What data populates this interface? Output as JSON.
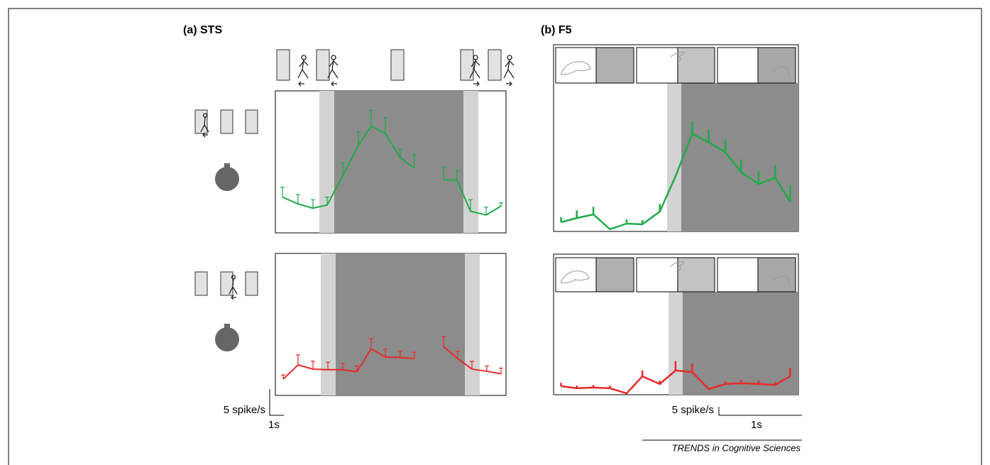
{
  "chart_data": [
    {
      "type": "line",
      "title": "(a) STS",
      "xlim": [
        0,
        16.25
      ],
      "ylim": [
        0,
        27
      ],
      "x": [
        0.5,
        1.6,
        2.65,
        3.65,
        4.75,
        5.85,
        6.75,
        7.75,
        8.8,
        9.8,
        10.8,
        11.85,
        12.8,
        13.75,
        14.85,
        15.9
      ],
      "series": [
        {
          "color": "#1faa4a",
          "values": [
            6.8,
            5.5,
            4.7,
            5.3,
            10.9,
            16.6,
            20.3,
            18.9,
            14.3,
            12.3,
            null,
            10.1,
            10.0,
            4.1,
            3.4,
            5.1
          ],
          "errors": [
            1.9,
            1.8,
            1.6,
            1.5,
            2.4,
            2.6,
            3.0,
            3.0,
            1.6,
            2.6,
            null,
            2.4,
            1.9,
            2.2,
            1.5,
            0.6
          ]
        }
      ]
    },
    {
      "type": "line",
      "xlim": [
        0,
        16.25
      ],
      "ylim": [
        0,
        27
      ],
      "x": [
        0.55,
        1.6,
        2.65,
        3.7,
        4.75,
        5.75,
        6.75,
        7.75,
        8.8,
        9.8,
        10.8,
        11.85,
        12.85,
        13.85,
        14.9,
        15.9
      ],
      "series": [
        {
          "color": "#e62a2a",
          "values": [
            3.1,
            5.8,
            5.0,
            4.9,
            4.9,
            4.5,
            8.9,
            7.3,
            7.2,
            7.0,
            null,
            9.3,
            7.0,
            5.0,
            4.6,
            4.1
          ],
          "errors": [
            0.8,
            1.9,
            1.5,
            1.4,
            1.2,
            1.1,
            1.9,
            1.5,
            1.2,
            1.2,
            null,
            1.9,
            1.4,
            1.5,
            1.0,
            1.1
          ]
        }
      ]
    },
    {
      "type": "line",
      "title": "(b) F5",
      "xlim": [
        0,
        2.95
      ],
      "ylim": [
        0,
        110
      ],
      "x": [
        0.09,
        0.28,
        0.48,
        0.68,
        0.88,
        1.07,
        1.28,
        1.47,
        1.67,
        1.87,
        2.07,
        2.26,
        2.47,
        2.67,
        2.85
      ],
      "series": [
        {
          "color": "#1faa4a",
          "values": [
            5.4,
            7.9,
            10,
            1.3,
            4.6,
            4.2,
            11.7,
            32.5,
            57.5,
            52.5,
            46.7,
            35,
            27.9,
            31.7,
            17.5
          ],
          "errors": [
            3,
            4.5,
            4.5,
            0,
            2.5,
            2.5,
            4.5,
            0,
            7.5,
            7.5,
            7.5,
            7.5,
            7.5,
            7.5,
            10
          ]
        }
      ]
    },
    {
      "type": "line",
      "xlim": [
        0,
        2.95
      ],
      "ylim": [
        0,
        82.5
      ],
      "x": [
        0.09,
        0.28,
        0.48,
        0.68,
        0.88,
        1.07,
        1.28,
        1.47,
        1.67,
        1.87,
        2.07,
        2.26,
        2.47,
        2.67,
        2.85
      ],
      "series": [
        {
          "color": "#e62a2a",
          "values": [
            5.0,
            3.8,
            4.2,
            3.8,
            0.8,
            10.8,
            6.3,
            14.2,
            13.3,
            3.3,
            6.3,
            6.7,
            6.3,
            5.8,
            10.8
          ],
          "errors": [
            2,
            1.5,
            1.5,
            1.5,
            0,
            3.5,
            2,
            5.5,
            5,
            0,
            1.5,
            2,
            2,
            1.5,
            5
          ]
        }
      ]
    }
  ],
  "scale_bars": [
    {
      "y_label": "5 spike/s",
      "x_label": "1s"
    },
    {
      "y_label": "5 spike/s",
      "x_label": "1s"
    }
  ],
  "source": "TRENDS in Cognitive Sciences"
}
